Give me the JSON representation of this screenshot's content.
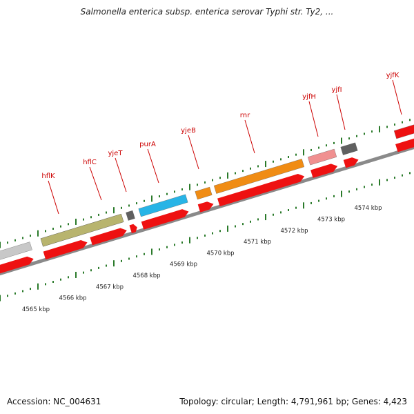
{
  "title": "Salmonella enterica subsp. enterica serovar Typhi str. Ty2, ...",
  "footer": {
    "accession": "Accession: NC_004631",
    "summary": "Topology: circular; Length: 4,791,961 bp; Genes: 4,423"
  },
  "colors": {
    "backbone": "#8a8a8a",
    "cds_strand": "#ee1111",
    "gene_label": "#cc0000",
    "tick_green": "#2a7a2a",
    "dark_gray": "#606060",
    "light_gray": "#c8c8c8",
    "olive": "#b8b46e",
    "cyan": "#28b4e6",
    "orange": "#f08c14",
    "pink": "#f09090"
  },
  "genes": [
    {
      "name": "",
      "color": "light_gray"
    },
    {
      "name": "hflK",
      "color": "olive"
    },
    {
      "name": "hflC",
      "color": "olive"
    },
    {
      "name": "yjeT",
      "color": "dark_gray"
    },
    {
      "name": "purA",
      "color": "cyan"
    },
    {
      "name": "yjeB",
      "color": "orange"
    },
    {
      "name": "rnr",
      "color": "orange"
    },
    {
      "name": "yjfH",
      "color": "pink"
    },
    {
      "name": "yjfI",
      "color": "dark_gray"
    },
    {
      "name": "yjfK",
      "color": "cds_strand"
    }
  ],
  "scale_labels": [
    "4565 kbp",
    "4566 kbp",
    "4567 kbp",
    "4568 kbp",
    "4569 kbp",
    "4570 kbp",
    "4571 kbp",
    "4572 kbp",
    "4573 kbp",
    "4574 kbp"
  ]
}
